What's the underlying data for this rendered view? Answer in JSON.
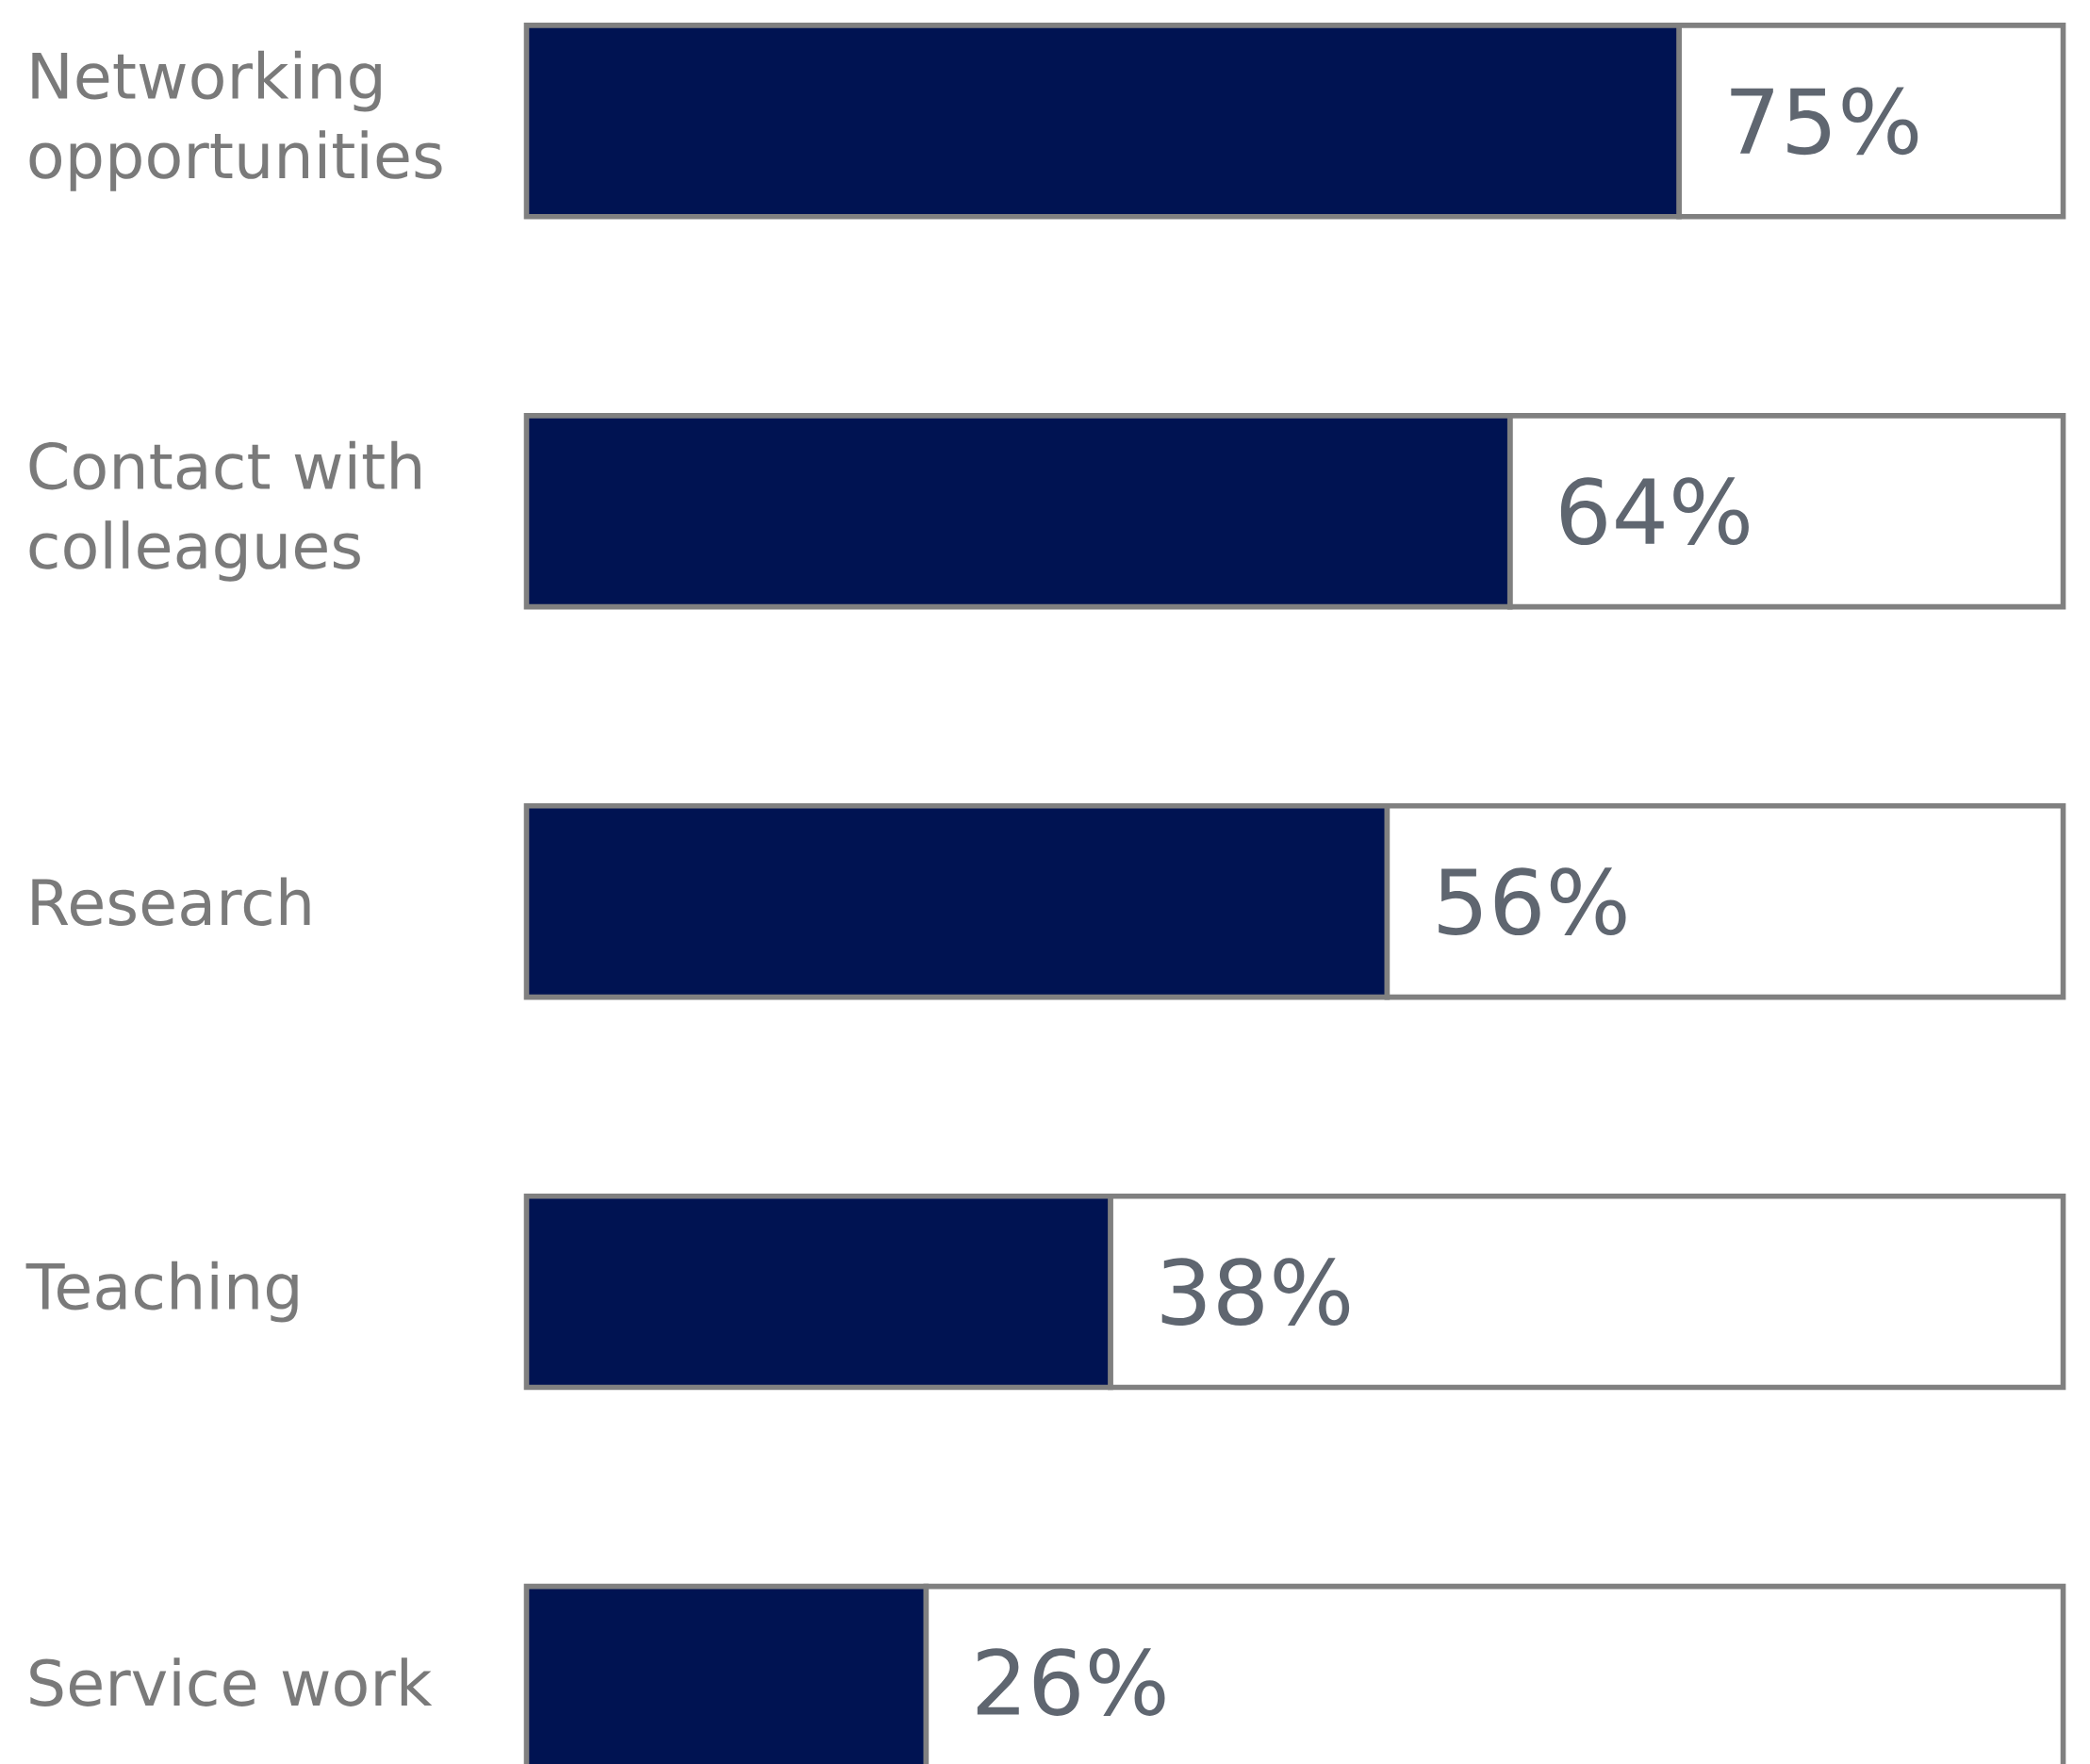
{
  "chart_data": {
    "type": "bar",
    "orientation": "horizontal",
    "stacked": true,
    "categories": [
      "Networking opportunities",
      "Contact with colleagues",
      "Research",
      "Teaching",
      "Service work"
    ],
    "series": [
      {
        "color": "#001352",
        "values": [
          75,
          64,
          56,
          38,
          26
        ],
        "value_labels": [
          "75%",
          "64%",
          "56%",
          "38%",
          "26%"
        ]
      },
      {
        "color": "#ffffff",
        "values": [
          25,
          36,
          44,
          62,
          74
        ]
      }
    ],
    "xlim": [
      0,
      100
    ],
    "tick_labels": "y"
  }
}
